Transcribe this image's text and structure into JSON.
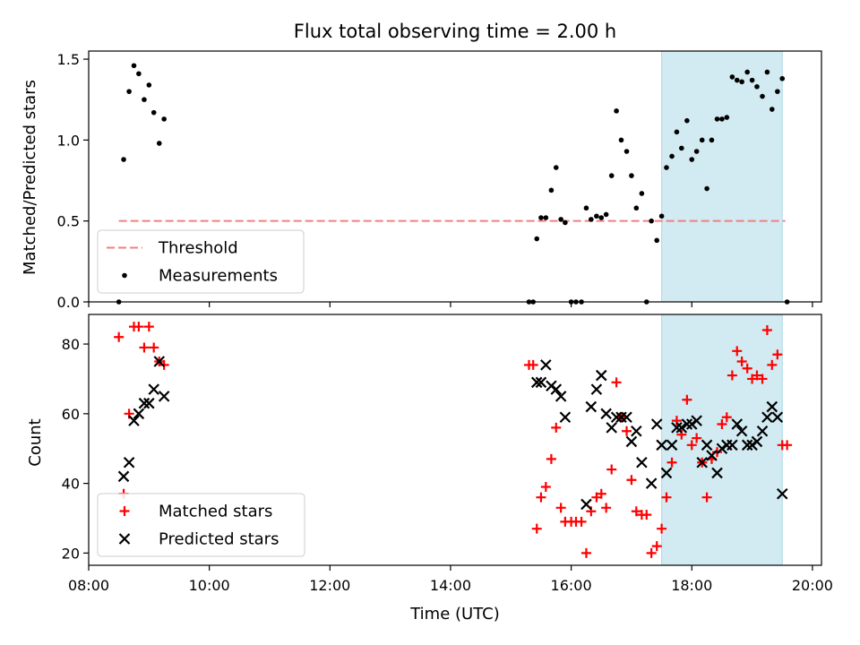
{
  "chart_data": {
    "type": "scatter",
    "title": "Flux total observing time = 2.00 h",
    "xlabel": "Time (UTC)",
    "x_unit": "hours_utc",
    "xlim": [
      8.0,
      20.15
    ],
    "x_ticks": [
      8,
      10,
      12,
      14,
      16,
      18,
      20
    ],
    "x_tick_labels": [
      "08:00",
      "10:00",
      "12:00",
      "14:00",
      "16:00",
      "18:00",
      "20:00"
    ],
    "highlight_span": [
      17.5,
      19.5
    ],
    "colors": {
      "threshold": "#f08080",
      "measurements": "#000000",
      "matched": "#ff0000",
      "predicted": "#000000",
      "span": "#add8e6"
    },
    "panels": [
      {
        "id": "ratio",
        "ylabel": "Matched/Predicted stars",
        "ylim": [
          0.0,
          1.55
        ],
        "y_ticks": [
          0.0,
          0.5,
          1.0,
          1.5
        ],
        "y_tick_labels": [
          "0.0",
          "0.5",
          "1.0",
          "1.5"
        ],
        "legend_position": "lower-left",
        "threshold": {
          "name": "Threshold",
          "value": 0.5,
          "x_range": [
            8.5,
            19.55
          ]
        },
        "series": [
          {
            "name": "Measurements",
            "marker": "dot",
            "points": [
              [
                8.5,
                0.0
              ],
              [
                8.58,
                0.88
              ],
              [
                8.67,
                1.3
              ],
              [
                8.75,
                1.46
              ],
              [
                8.83,
                1.41
              ],
              [
                8.92,
                1.25
              ],
              [
                9.0,
                1.34
              ],
              [
                9.08,
                1.17
              ],
              [
                9.17,
                0.98
              ],
              [
                9.25,
                1.13
              ],
              [
                15.3,
                0.0
              ],
              [
                15.37,
                0.0
              ],
              [
                15.43,
                0.39
              ],
              [
                15.5,
                0.52
              ],
              [
                15.58,
                0.52
              ],
              [
                15.67,
                0.69
              ],
              [
                15.75,
                0.83
              ],
              [
                15.83,
                0.51
              ],
              [
                15.9,
                0.49
              ],
              [
                16.0,
                0.0
              ],
              [
                16.08,
                0.0
              ],
              [
                16.17,
                0.0
              ],
              [
                16.25,
                0.58
              ],
              [
                16.33,
                0.51
              ],
              [
                16.42,
                0.53
              ],
              [
                16.5,
                0.52
              ],
              [
                16.58,
                0.54
              ],
              [
                16.67,
                0.78
              ],
              [
                16.75,
                1.18
              ],
              [
                16.83,
                1.0
              ],
              [
                16.92,
                0.93
              ],
              [
                17.0,
                0.78
              ],
              [
                17.08,
                0.58
              ],
              [
                17.17,
                0.67
              ],
              [
                17.25,
                0.0
              ],
              [
                17.33,
                0.5
              ],
              [
                17.42,
                0.38
              ],
              [
                17.5,
                0.53
              ],
              [
                17.58,
                0.83
              ],
              [
                17.67,
                0.9
              ],
              [
                17.75,
                1.05
              ],
              [
                17.83,
                0.95
              ],
              [
                17.92,
                1.12
              ],
              [
                18.0,
                0.88
              ],
              [
                18.08,
                0.93
              ],
              [
                18.17,
                1.0
              ],
              [
                18.25,
                0.7
              ],
              [
                18.33,
                1.0
              ],
              [
                18.42,
                1.13
              ],
              [
                18.5,
                1.13
              ],
              [
                18.58,
                1.14
              ],
              [
                18.67,
                1.39
              ],
              [
                18.75,
                1.37
              ],
              [
                18.83,
                1.36
              ],
              [
                18.92,
                1.42
              ],
              [
                19.0,
                1.37
              ],
              [
                19.08,
                1.33
              ],
              [
                19.17,
                1.27
              ],
              [
                19.25,
                1.42
              ],
              [
                19.33,
                1.19
              ],
              [
                19.42,
                1.3
              ],
              [
                19.5,
                1.38
              ],
              [
                19.58,
                0.0
              ]
            ]
          }
        ]
      },
      {
        "id": "count",
        "ylabel": "Count",
        "ylim": [
          16.5,
          88.5
        ],
        "y_ticks": [
          20,
          40,
          60,
          80
        ],
        "y_tick_labels": [
          "20",
          "40",
          "60",
          "80"
        ],
        "legend_position": "lower-left",
        "series": [
          {
            "name": "Matched stars",
            "marker": "plus",
            "points": [
              [
                8.5,
                82
              ],
              [
                8.58,
                37
              ],
              [
                8.67,
                60
              ],
              [
                8.75,
                85
              ],
              [
                8.83,
                85
              ],
              [
                8.92,
                79
              ],
              [
                9.0,
                85
              ],
              [
                9.08,
                79
              ],
              [
                9.17,
                75
              ],
              [
                9.25,
                74
              ],
              [
                15.3,
                74
              ],
              [
                15.37,
                74
              ],
              [
                15.43,
                27
              ],
              [
                15.5,
                36
              ],
              [
                15.58,
                39
              ],
              [
                15.67,
                47
              ],
              [
                15.75,
                56
              ],
              [
                15.83,
                33
              ],
              [
                15.9,
                29
              ],
              [
                16.0,
                29
              ],
              [
                16.08,
                29
              ],
              [
                16.17,
                29
              ],
              [
                16.25,
                20
              ],
              [
                16.33,
                32
              ],
              [
                16.42,
                36
              ],
              [
                16.5,
                37
              ],
              [
                16.58,
                33
              ],
              [
                16.67,
                44
              ],
              [
                16.75,
                69
              ],
              [
                16.83,
                59
              ],
              [
                16.92,
                55
              ],
              [
                17.0,
                41
              ],
              [
                17.08,
                32
              ],
              [
                17.17,
                31
              ],
              [
                17.25,
                31
              ],
              [
                17.33,
                20
              ],
              [
                17.42,
                22
              ],
              [
                17.5,
                27
              ],
              [
                17.58,
                36
              ],
              [
                17.67,
                46
              ],
              [
                17.75,
                58
              ],
              [
                17.83,
                54
              ],
              [
                17.92,
                64
              ],
              [
                18.0,
                51
              ],
              [
                18.08,
                53
              ],
              [
                18.17,
                46
              ],
              [
                18.25,
                36
              ],
              [
                18.33,
                47
              ],
              [
                18.42,
                49
              ],
              [
                18.5,
                57
              ],
              [
                18.58,
                59
              ],
              [
                18.67,
                71
              ],
              [
                18.75,
                78
              ],
              [
                18.83,
                75
              ],
              [
                18.92,
                73
              ],
              [
                19.0,
                70
              ],
              [
                19.08,
                71
              ],
              [
                19.17,
                70
              ],
              [
                19.25,
                84
              ],
              [
                19.33,
                74
              ],
              [
                19.42,
                77
              ],
              [
                19.5,
                51
              ],
              [
                19.58,
                51
              ]
            ]
          },
          {
            "name": "Predicted stars",
            "marker": "x",
            "points": [
              [
                8.58,
                42
              ],
              [
                8.67,
                46
              ],
              [
                8.75,
                58
              ],
              [
                8.83,
                60
              ],
              [
                8.92,
                63
              ],
              [
                9.0,
                63
              ],
              [
                9.08,
                67
              ],
              [
                9.17,
                75
              ],
              [
                9.25,
                65
              ],
              [
                15.43,
                69
              ],
              [
                15.5,
                69
              ],
              [
                15.58,
                74
              ],
              [
                15.67,
                68
              ],
              [
                15.75,
                67
              ],
              [
                15.83,
                65
              ],
              [
                15.9,
                59
              ],
              [
                16.25,
                34
              ],
              [
                16.33,
                62
              ],
              [
                16.42,
                67
              ],
              [
                16.5,
                71
              ],
              [
                16.58,
                60
              ],
              [
                16.67,
                56
              ],
              [
                16.75,
                59
              ],
              [
                16.83,
                59
              ],
              [
                16.92,
                59
              ],
              [
                17.0,
                52
              ],
              [
                17.08,
                55
              ],
              [
                17.17,
                46
              ],
              [
                17.33,
                40
              ],
              [
                17.42,
                57
              ],
              [
                17.5,
                51
              ],
              [
                17.58,
                43
              ],
              [
                17.67,
                51
              ],
              [
                17.75,
                56
              ],
              [
                17.83,
                56
              ],
              [
                17.92,
                57
              ],
              [
                18.0,
                57
              ],
              [
                18.08,
                58
              ],
              [
                18.17,
                46
              ],
              [
                18.25,
                51
              ],
              [
                18.33,
                48
              ],
              [
                18.42,
                43
              ],
              [
                18.5,
                50
              ],
              [
                18.58,
                51
              ],
              [
                18.67,
                51
              ],
              [
                18.75,
                57
              ],
              [
                18.83,
                55
              ],
              [
                18.92,
                51
              ],
              [
                19.0,
                51
              ],
              [
                19.08,
                52
              ],
              [
                19.17,
                55
              ],
              [
                19.25,
                59
              ],
              [
                19.33,
                62
              ],
              [
                19.42,
                59
              ],
              [
                19.5,
                37
              ]
            ]
          }
        ]
      }
    ]
  }
}
